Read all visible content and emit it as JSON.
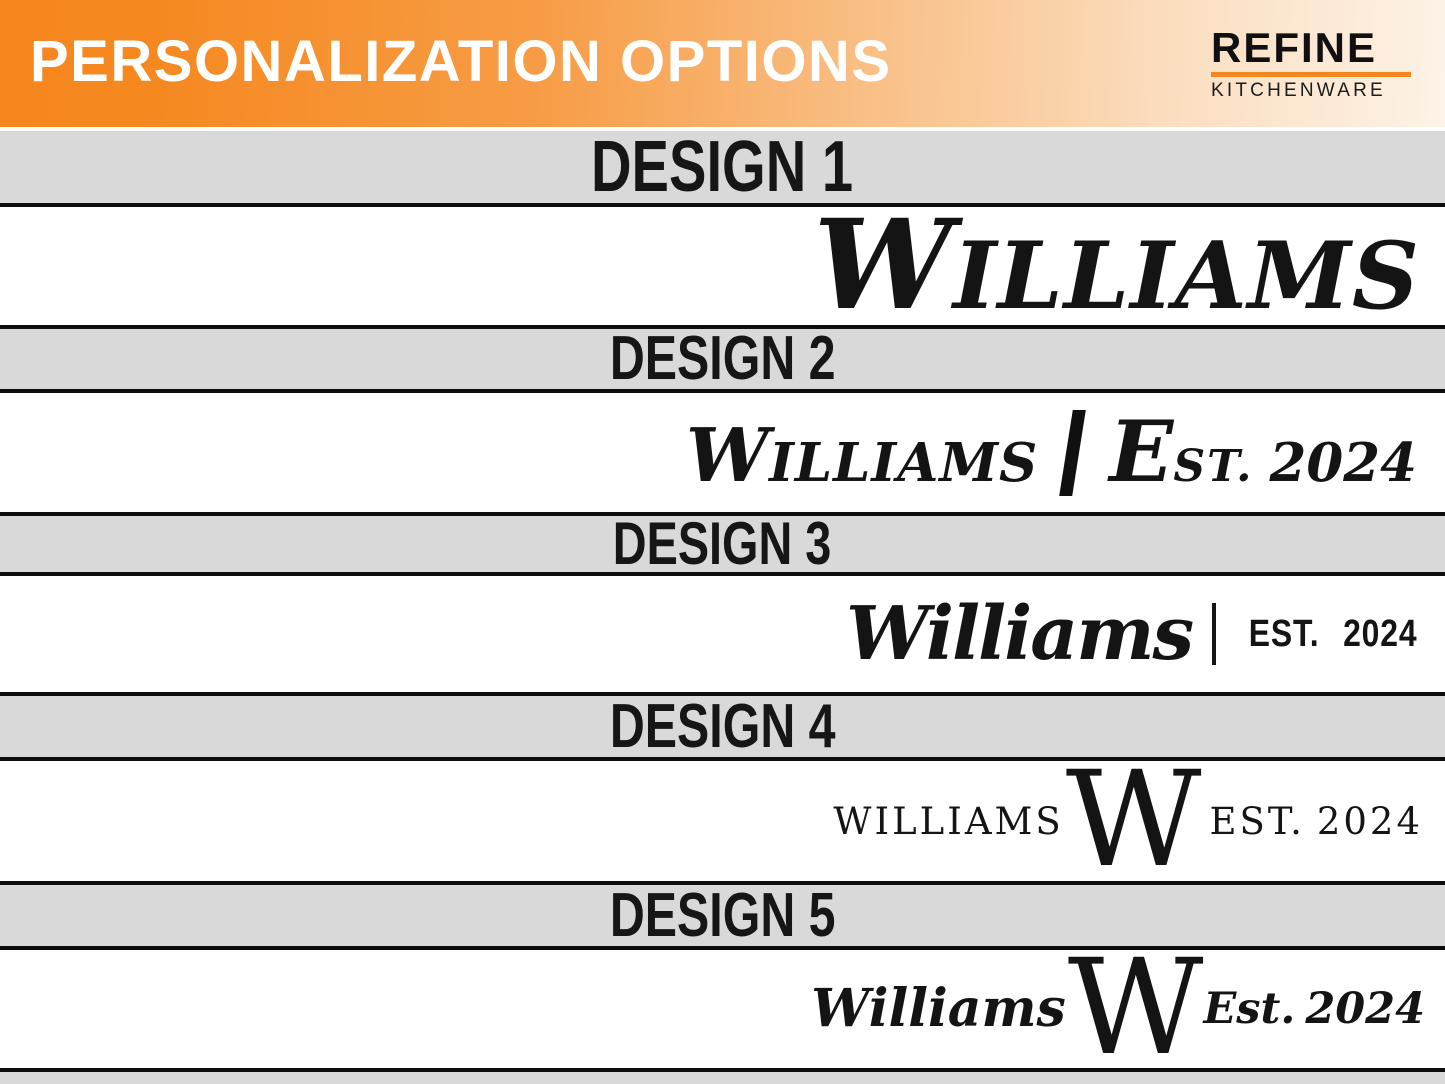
{
  "header": {
    "title": "PERSONALIZATION OPTIONS",
    "brand_name": "REFINE",
    "brand_sub": "KITCHENWARE"
  },
  "designs": [
    {
      "label": "DESIGN 1",
      "name_initial": "W",
      "name_rest": "ILLIAMS"
    },
    {
      "label": "DESIGN 2",
      "name_initial": "W",
      "name_rest": "ILLIAMS",
      "divider": "|",
      "est_initial": "E",
      "est_rest": "ST.",
      "year": "2024"
    },
    {
      "label": "DESIGN 3",
      "name": "Williams",
      "divider": "|",
      "est": "EST.",
      "year": "2024"
    },
    {
      "label": "DESIGN 4",
      "name": "WILLIAMS",
      "monogram": "W",
      "est": "EST.",
      "year": "2024"
    },
    {
      "label": "DESIGN 5",
      "name": "Williams",
      "monogram": "W",
      "est": "Est.",
      "year": "2024"
    }
  ],
  "colors": {
    "accent_orange": "#F5871E",
    "band_gray": "#D9D9D9",
    "line_black": "#0D0D0D",
    "text_black": "#141414",
    "header_text": "#FFFFFF"
  }
}
